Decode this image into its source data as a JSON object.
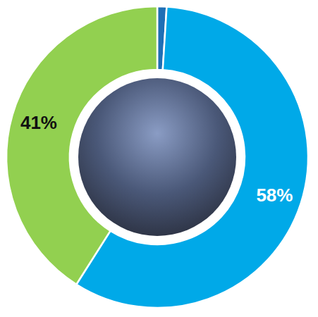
{
  "chart_data": {
    "type": "donut",
    "values": [
      1,
      58,
      41
    ],
    "colors": [
      "#1f6fb5",
      "#00a9e8",
      "#92d050"
    ],
    "value_labels": [
      null,
      "58%",
      "41%"
    ],
    "data_labels": true
  }
}
